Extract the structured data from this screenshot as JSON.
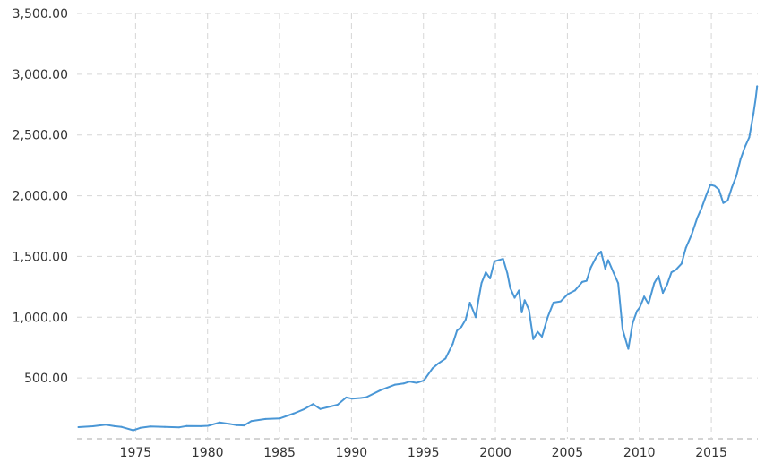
{
  "colors": {
    "line": "#4a97d6",
    "grid": "#d6d6d6",
    "text": "#333333"
  },
  "chart_data": {
    "type": "line",
    "title": "",
    "xlabel": "",
    "ylabel": "",
    "grid": true,
    "legend": "none",
    "xlim": [
      1970.9,
      2018.2
    ],
    "ylim": [
      0,
      3500
    ],
    "y_ticks": [
      500,
      1000,
      1500,
      2000,
      2500,
      3000,
      3500
    ],
    "y_tick_labels": [
      "500.00",
      "1,000.00",
      "1,500.00",
      "2,000.00",
      "2,500.00",
      "3,000.00",
      "3,500.00"
    ],
    "x_ticks": [
      1975,
      1980,
      1985,
      1990,
      1995,
      2000,
      2005,
      2010,
      2015
    ],
    "x_tick_labels": [
      "1975",
      "1980",
      "1985",
      "1990",
      "1995",
      "2000",
      "2005",
      "2010",
      "2015"
    ],
    "series": [
      {
        "x": [
          1971.0,
          1972.0,
          1972.9,
          1973.5,
          1974.0,
          1974.8,
          1975.3,
          1976.0,
          1977.0,
          1978.0,
          1978.5,
          1979.5,
          1980.0,
          1980.8,
          1981.5,
          1982.0,
          1982.5,
          1983.0,
          1984.0,
          1985.0,
          1986.0,
          1986.7,
          1987.3,
          1987.8,
          1988.5,
          1989.0,
          1989.6,
          1990.0,
          1990.6,
          1991.0,
          1992.0,
          1993.0,
          1993.6,
          1994.0,
          1994.5,
          1995.0,
          1995.6,
          1996.0,
          1996.5,
          1997.0,
          1997.3,
          1997.6,
          1997.9,
          1998.2,
          1998.6,
          1998.8,
          1999.0,
          1999.3,
          1999.6,
          1999.9,
          2000.2,
          2000.5,
          2000.8,
          2001.0,
          2001.3,
          2001.6,
          2001.8,
          2002.0,
          2002.3,
          2002.6,
          2002.9,
          2003.2,
          2003.6,
          2004.0,
          2004.5,
          2005.0,
          2005.5,
          2006.0,
          2006.3,
          2006.6,
          2007.0,
          2007.3,
          2007.6,
          2007.8,
          2008.2,
          2008.5,
          2008.8,
          2009.0,
          2009.2,
          2009.5,
          2009.8,
          2010.0,
          2010.3,
          2010.6,
          2011.0,
          2011.3,
          2011.6,
          2011.9,
          2012.2,
          2012.5,
          2012.9,
          2013.2,
          2013.6,
          2014.0,
          2014.3,
          2014.6,
          2014.9,
          2015.2,
          2015.5,
          2015.8,
          2016.1,
          2016.4,
          2016.7,
          2017.0,
          2017.3,
          2017.6,
          2017.9,
          2018.05,
          2018.15
        ],
        "y": [
          96,
          103,
          116,
          104,
          97,
          70,
          90,
          102,
          97,
          94,
          105,
          104,
          107,
          134,
          122,
          112,
          110,
          145,
          163,
          168,
          210,
          245,
          285,
          245,
          265,
          280,
          340,
          330,
          335,
          342,
          400,
          445,
          455,
          470,
          460,
          480,
          580,
          620,
          660,
          780,
          890,
          920,
          980,
          1120,
          1000,
          1150,
          1280,
          1370,
          1320,
          1460,
          1470,
          1480,
          1360,
          1240,
          1160,
          1220,
          1040,
          1140,
          1060,
          820,
          880,
          840,
          1000,
          1120,
          1130,
          1190,
          1220,
          1290,
          1300,
          1410,
          1500,
          1540,
          1400,
          1470,
          1360,
          1280,
          900,
          820,
          740,
          950,
          1050,
          1080,
          1170,
          1110,
          1280,
          1340,
          1200,
          1270,
          1370,
          1390,
          1440,
          1570,
          1680,
          1820,
          1900,
          2000,
          2090,
          2080,
          2050,
          1940,
          1960,
          2070,
          2160,
          2300,
          2400,
          2480,
          2680,
          2800,
          2900
        ]
      }
    ]
  }
}
